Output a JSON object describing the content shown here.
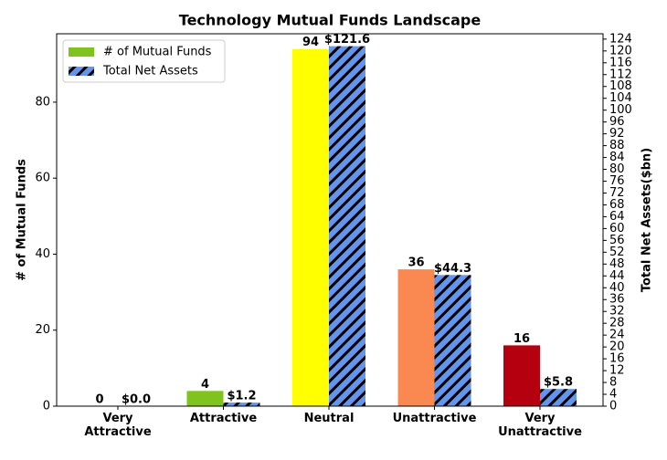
{
  "chart_data": {
    "type": "bar",
    "title": "Technology Mutual Funds Landscape",
    "y_label": "# of Mutual Funds",
    "y2_label": "Total Net Assets($bn)",
    "categories": [
      "Very\nAttractive",
      "Attractive",
      "Neutral",
      "Unattractive",
      "Very\nUnattractive"
    ],
    "series": [
      {
        "name": "# of Mutual Funds",
        "color": "#80c31c",
        "colors": [
          "#ffffff",
          "#80c31c",
          "#ffff00",
          "#f98950",
          "#b5000f"
        ],
        "values": [
          0,
          4,
          94,
          36,
          16
        ]
      },
      {
        "name": "Total Net Assets",
        "color": "#6495ed",
        "hatch": "#000000",
        "axis": "y2",
        "values": [
          0.0,
          1.2,
          121.6,
          44.3,
          5.8
        ],
        "value_labels": [
          "$0.0",
          "$1.2",
          "$121.6",
          "$44.3",
          "$5.8"
        ]
      }
    ],
    "ylim": [
      0,
      98
    ],
    "yticks": [
      0,
      20,
      40,
      60,
      80
    ],
    "y2lim": [
      0,
      125.8
    ],
    "y2ticks": [
      0,
      4,
      8,
      12,
      16,
      20,
      24,
      28,
      32,
      36,
      40,
      44,
      48,
      52,
      56,
      60,
      64,
      68,
      72,
      76,
      80,
      84,
      88,
      92,
      96,
      100,
      104,
      108,
      112,
      116,
      120,
      124
    ],
    "legend": "upper left"
  }
}
